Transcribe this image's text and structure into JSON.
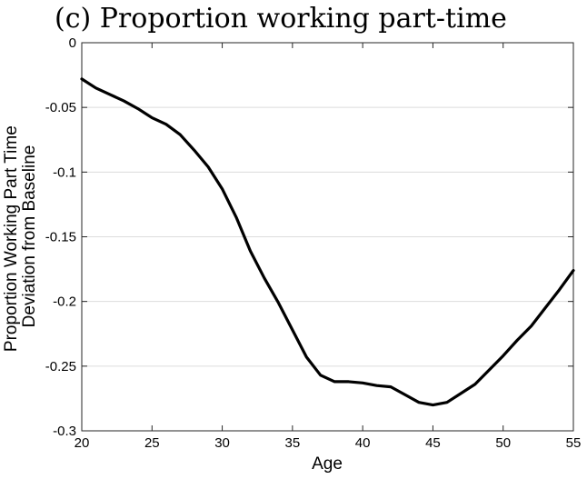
{
  "chart_data": {
    "type": "line",
    "title": "(c) Proportion working part-time",
    "xlabel": "Age",
    "ylabel_lines": [
      "Proportion Working Part Time",
      "Deviation from Baseline"
    ],
    "xlim": [
      20,
      55
    ],
    "ylim": [
      -0.3,
      0
    ],
    "x_ticks": [
      20,
      25,
      30,
      35,
      40,
      45,
      50,
      55
    ],
    "y_ticks": [
      0,
      -0.05,
      -0.1,
      -0.15,
      -0.2,
      -0.25,
      -0.3
    ],
    "y_tick_labels": [
      "0",
      "-0.05",
      "-0.1",
      "-0.15",
      "-0.2",
      "-0.25",
      "-0.3"
    ],
    "grid": "horizontal",
    "series": [
      {
        "color": "#000000",
        "x": [
          20,
          21,
          22,
          23,
          24,
          25,
          26,
          27,
          28,
          29,
          30,
          31,
          32,
          33,
          34,
          35,
          36,
          37,
          38,
          39,
          40,
          41,
          42,
          43,
          44,
          45,
          46,
          47,
          48,
          49,
          50,
          51,
          52,
          53,
          54,
          55
        ],
        "y": [
          -0.028,
          -0.035,
          -0.04,
          -0.045,
          -0.051,
          -0.058,
          -0.063,
          -0.071,
          -0.083,
          -0.096,
          -0.113,
          -0.135,
          -0.161,
          -0.182,
          -0.201,
          -0.222,
          -0.243,
          -0.257,
          -0.262,
          -0.262,
          -0.263,
          -0.265,
          -0.266,
          -0.272,
          -0.278,
          -0.28,
          -0.278,
          -0.271,
          -0.264,
          -0.253,
          -0.242,
          -0.23,
          -0.219,
          -0.205,
          -0.191,
          -0.176
        ]
      }
    ]
  }
}
